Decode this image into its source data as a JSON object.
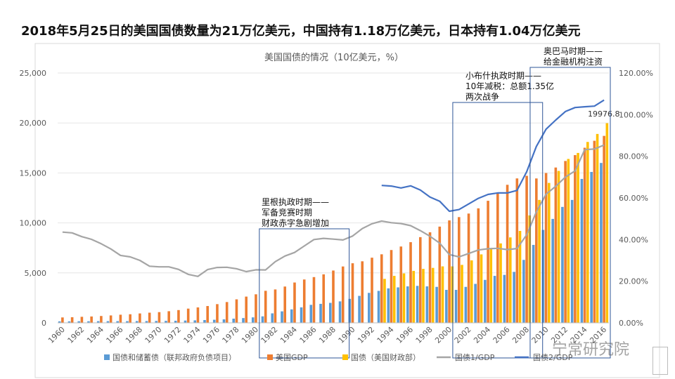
{
  "headline": "2018年5月25日的美国国债数量为21万亿美元，中国持有1.18万亿美元，日本持有1.04万亿美元",
  "watermark": "宁常研究院",
  "chart_data": {
    "type": "bar+line",
    "title": "美国国债的情况（10亿美元，%）",
    "years": [
      1960,
      1961,
      1962,
      1963,
      1964,
      1965,
      1966,
      1967,
      1968,
      1969,
      1970,
      1971,
      1972,
      1973,
      1974,
      1975,
      1976,
      1977,
      1978,
      1979,
      1980,
      1981,
      1982,
      1983,
      1984,
      1985,
      1986,
      1987,
      1988,
      1989,
      1990,
      1991,
      1992,
      1993,
      1994,
      1995,
      1996,
      1997,
      1998,
      1999,
      2000,
      2001,
      2002,
      2003,
      2004,
      2005,
      2006,
      2007,
      2008,
      2009,
      2010,
      2011,
      2012,
      2013,
      2014,
      2015,
      2016
    ],
    "x_tick_labels": [
      "1960",
      "1962",
      "1964",
      "1966",
      "1968",
      "1970",
      "1972",
      "1974",
      "1976",
      "1978",
      "1980",
      "1982",
      "1984",
      "1986",
      "1988",
      "1990",
      "1992",
      "1994",
      "1996",
      "1998",
      "2000",
      "2002",
      "2004",
      "2006",
      "2008",
      "2010",
      "2012",
      "2014",
      "2016"
    ],
    "y_left_ticks": [
      "0",
      "5,000",
      "10,000",
      "15,000",
      "20,000",
      "25,000"
    ],
    "y_left_range": [
      0,
      25000
    ],
    "y_right_ticks": [
      "0.00%",
      "20.00%",
      "40.00%",
      "60.00%",
      "80.00%",
      "100.00%",
      "120.00%"
    ],
    "y_right_range": [
      0,
      120
    ],
    "series": [
      {
        "name": "国债和储蓄债（联邦政府负债项目）",
        "kind": "bar",
        "axis": "left",
        "color": "#5b9bd5",
        "values": [
          150,
          150,
          160,
          160,
          170,
          170,
          170,
          170,
          180,
          180,
          190,
          200,
          210,
          230,
          250,
          280,
          310,
          350,
          420,
          480,
          550,
          650,
          950,
          1150,
          1350,
          1550,
          1800,
          1900,
          2000,
          2150,
          2400,
          2700,
          3000,
          3200,
          3450,
          3550,
          3650,
          3700,
          3650,
          3600,
          3300,
          3300,
          3600,
          3900,
          4300,
          4700,
          4800,
          5100,
          6300,
          7800,
          9300,
          10400,
          11600,
          12300,
          14400,
          15100,
          16000
        ]
      },
      {
        "name": "美国GDP",
        "kind": "bar",
        "axis": "left",
        "color": "#ed7d31",
        "values": [
          543,
          563,
          605,
          638,
          686,
          743,
          815,
          861,
          942,
          1019,
          1073,
          1165,
          1280,
          1425,
          1545,
          1684,
          1873,
          2082,
          2352,
          2627,
          2857,
          3207,
          3343,
          3634,
          4037,
          4339,
          4579,
          4855,
          5236,
          5641,
          5963,
          6158,
          6520,
          6859,
          7287,
          7639,
          8073,
          8577,
          9062,
          9630,
          10252,
          10581,
          10936,
          11458,
          12213,
          13036,
          13814,
          14451,
          14712,
          14448,
          14992,
          15542,
          16197,
          16784,
          17521,
          18219,
          18707
        ]
      },
      {
        "name": "国债（美国财政部）",
        "kind": "bar",
        "axis": "left",
        "color": "#ffc000",
        "values": [
          null,
          null,
          null,
          null,
          null,
          null,
          null,
          null,
          null,
          null,
          null,
          null,
          null,
          null,
          null,
          null,
          null,
          null,
          null,
          null,
          null,
          null,
          null,
          null,
          null,
          null,
          null,
          null,
          null,
          null,
          null,
          null,
          null,
          4400,
          4700,
          4950,
          5200,
          5400,
          5500,
          5650,
          5650,
          5800,
          6250,
          6850,
          7400,
          7950,
          8550,
          9200,
          10750,
          12300,
          14000,
          15200,
          16400,
          17000,
          18100,
          18900,
          19976.8
        ]
      },
      {
        "name": "国债1/GDP",
        "kind": "line",
        "axis": "right",
        "color": "#a5a5a5",
        "values": [
          43.6,
          43.2,
          41.4,
          40.1,
          38.0,
          35.5,
          32.4,
          31.7,
          30.0,
          27.2,
          26.9,
          26.9,
          25.7,
          23.3,
          22.3,
          25.6,
          26.6,
          26.7,
          26.0,
          24.6,
          25.5,
          25.4,
          29.4,
          32.1,
          33.8,
          36.9,
          40.0,
          40.6,
          40.2,
          39.8,
          41.7,
          45.3,
          47.6,
          48.9,
          48.1,
          47.7,
          46.7,
          44.3,
          41.6,
          38.3,
          32.8,
          31.7,
          33.3,
          35.0,
          35.6,
          35.8,
          35.2,
          35.7,
          42.3,
          53.3,
          61.8,
          65.6,
          70.0,
          73.0,
          83.2,
          83.5,
          85.4
        ]
      },
      {
        "name": "国债2/GDP",
        "kind": "line",
        "axis": "right",
        "color": "#4472c4",
        "values": [
          null,
          null,
          null,
          null,
          null,
          null,
          null,
          null,
          null,
          null,
          null,
          null,
          null,
          null,
          null,
          null,
          null,
          null,
          null,
          null,
          null,
          null,
          null,
          null,
          null,
          null,
          null,
          null,
          null,
          null,
          null,
          null,
          null,
          66.0,
          65.7,
          64.8,
          65.8,
          63.8,
          60.4,
          58.4,
          53.6,
          54.4,
          57.1,
          59.8,
          61.7,
          62.4,
          62.4,
          63.6,
          72.6,
          84.7,
          93.0,
          97.4,
          101.5,
          103.4,
          103.8,
          104.1,
          107.0
        ]
      }
    ],
    "data_label": "19976.8",
    "annotations": [
      {
        "label": [
          "里根执政时期——",
          "军备竞赛时期",
          "财政赤字急剧增加"
        ],
        "from": 1981,
        "to": 1989
      },
      {
        "label": [
          "小布什执政时期——",
          "10年减税：总额1.35亿",
          "两次战争"
        ],
        "from": 2001,
        "to": 2009
      },
      {
        "label": [
          "奥巴马时期——",
          "给金融机构注资"
        ],
        "from": 2009,
        "to": 2016
      }
    ]
  }
}
